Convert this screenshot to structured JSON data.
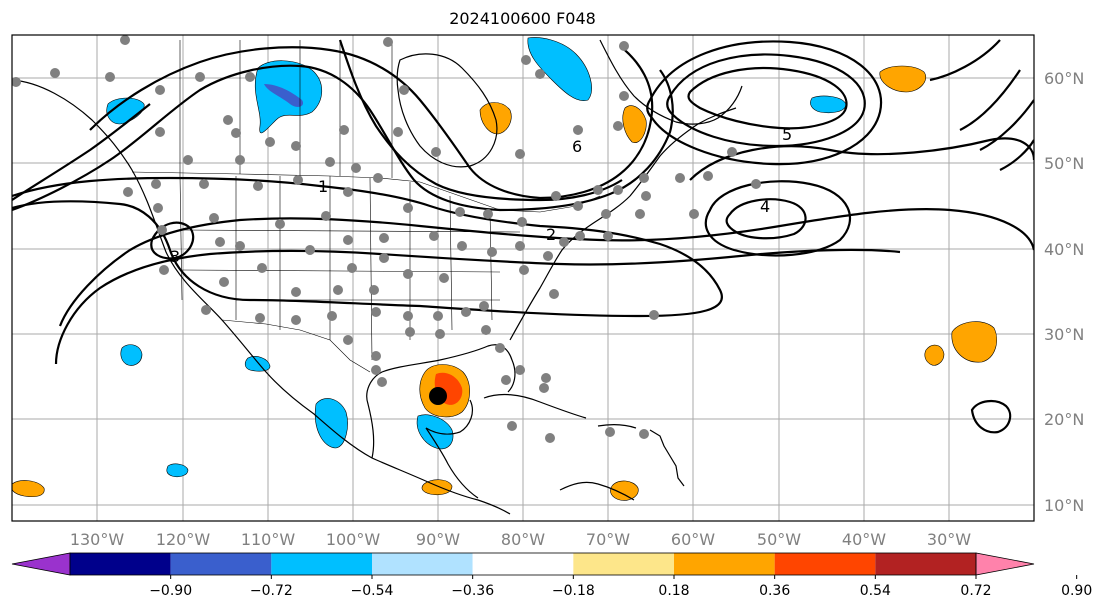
{
  "title": "2024100600 F048",
  "map": {
    "lon_ticks": [
      "130°W",
      "120°W",
      "110°W",
      "100°W",
      "90°W",
      "80°W",
      "70°W",
      "60°W",
      "50°W",
      "40°W",
      "30°W"
    ],
    "lat_ticks": [
      "60°N",
      "50°N",
      "40°N",
      "30°N",
      "20°N",
      "10°N"
    ],
    "contour_labels": [
      "1",
      "2",
      "3",
      "4",
      "5",
      "6",
      "1",
      "2",
      "3",
      "4",
      "5",
      "6",
      "2",
      "3",
      "3",
      "4",
      "1",
      "2"
    ],
    "marker_label": ""
  },
  "colorbar": {
    "ticks": [
      "−0.90",
      "−0.72",
      "−0.54",
      "−0.36",
      "−0.18",
      "0.18",
      "0.36",
      "0.54",
      "0.72",
      "0.90"
    ],
    "colors": [
      "#9a32cd",
      "#00008b",
      "#3a5fcd",
      "#00bfff",
      "#b0e2ff",
      "#ffffff",
      "#fde68a",
      "#ffa500",
      "#ff4500",
      "#b22222",
      "#ff82ab"
    ]
  }
}
